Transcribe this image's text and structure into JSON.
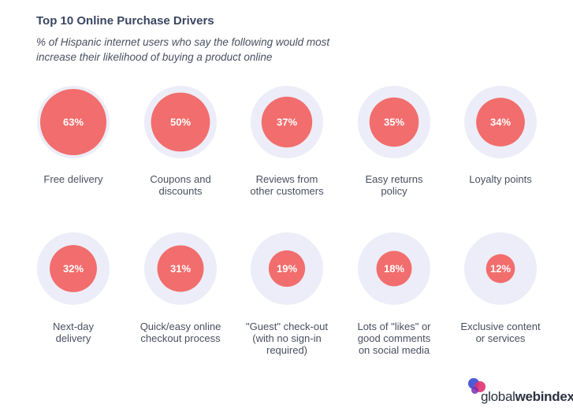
{
  "header": {
    "title": "Top 10 Online Purchase Drivers",
    "subtitle": "% of Hispanic internet users who say the following would most increase their likelihood of buying a product online"
  },
  "logo": {
    "part1": "global",
    "part2": "webindex"
  },
  "colors": {
    "outer": "#ecedf8",
    "inner": "#f26d6d",
    "value_text": "#ffffff"
  },
  "chart_data": {
    "type": "bubble",
    "title": "Top 10 Online Purchase Drivers",
    "subtitle": "% of Hispanic internet users who say the following would most increase their likelihood of buying a product online",
    "unit": "%",
    "layout": "grid 5x2",
    "categories": [
      "Free delivery",
      "Coupons and discounts",
      "Reviews from other customers",
      "Easy returns policy",
      "Loyalty points",
      "Next-day delivery",
      "Quick/easy online checkout process",
      "\"Guest\" check-out (with no sign-in required)",
      "Lots of \"likes\" or good comments on social media",
      "Exclusive content or services"
    ],
    "label_lines": [
      [
        "Free delivery"
      ],
      [
        "Coupons and",
        "discounts"
      ],
      [
        "Reviews from",
        "other customers"
      ],
      [
        "Easy returns",
        "policy"
      ],
      [
        "Loyalty points"
      ],
      [
        "Next-day",
        "delivery"
      ],
      [
        "Quick/easy online",
        "checkout process"
      ],
      [
        "\"Guest\" check-out",
        "(with no sign-in",
        "required)"
      ],
      [
        "Lots of \"likes\" or",
        "good comments",
        "on social media"
      ],
      [
        "Exclusive content",
        "or services"
      ]
    ],
    "values": [
      63,
      50,
      37,
      35,
      34,
      32,
      31,
      19,
      18,
      12
    ],
    "value_labels": [
      "63%",
      "50%",
      "37%",
      "35%",
      "34%",
      "32%",
      "31%",
      "19%",
      "18%",
      "12%"
    ]
  }
}
